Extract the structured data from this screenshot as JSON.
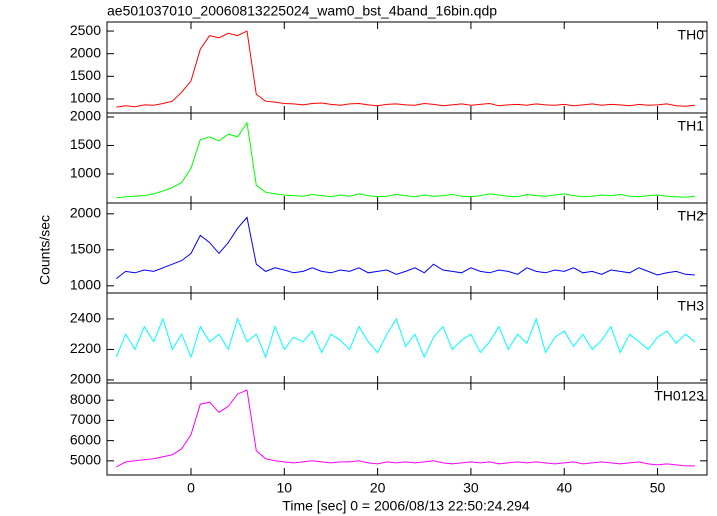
{
  "chart_data": [
    {
      "type": "line",
      "title": "ae501037010_20060813225024_wam0_bst_4band_16bin.qdp",
      "label": "TH0",
      "color": "#ff0000",
      "x": [
        -8,
        -7,
        -6,
        -5,
        -4,
        -3,
        -2,
        -1,
        0,
        1,
        2,
        3,
        4,
        5,
        6,
        7,
        8,
        9,
        10,
        11,
        12,
        13,
        14,
        15,
        16,
        17,
        18,
        19,
        20,
        21,
        22,
        23,
        24,
        25,
        26,
        27,
        28,
        29,
        30,
        31,
        32,
        33,
        34,
        35,
        36,
        37,
        38,
        39,
        40,
        41,
        42,
        43,
        44,
        45,
        46,
        47,
        48,
        49,
        50,
        51,
        52,
        53,
        54
      ],
      "values": [
        820,
        850,
        830,
        870,
        860,
        900,
        950,
        1150,
        1400,
        2100,
        2400,
        2350,
        2450,
        2400,
        2500,
        1100,
        950,
        930,
        900,
        890,
        870,
        900,
        910,
        880,
        860,
        890,
        900,
        870,
        850,
        880,
        890,
        870,
        860,
        900,
        880,
        850,
        870,
        890,
        860,
        880,
        900,
        850,
        870,
        880,
        860,
        890,
        870,
        860,
        880,
        850,
        870,
        890,
        860,
        880,
        870,
        850,
        880,
        860,
        870,
        890,
        850,
        840,
        860
      ],
      "xlim": [
        -9,
        55.3
      ],
      "xticks": [
        0,
        10,
        20,
        30,
        40,
        50
      ],
      "ylim": [
        690,
        2700
      ],
      "yticks": [
        1000,
        1500,
        2000,
        2500
      ]
    },
    {
      "type": "line",
      "label": "TH1",
      "color": "#00ff00",
      "x": [
        -8,
        -7,
        -6,
        -5,
        -4,
        -3,
        -2,
        -1,
        0,
        1,
        2,
        3,
        4,
        5,
        6,
        7,
        8,
        9,
        10,
        11,
        12,
        13,
        14,
        15,
        16,
        17,
        18,
        19,
        20,
        21,
        22,
        23,
        24,
        25,
        26,
        27,
        28,
        29,
        30,
        31,
        32,
        33,
        34,
        35,
        36,
        37,
        38,
        39,
        40,
        41,
        42,
        43,
        44,
        45,
        46,
        47,
        48,
        49,
        50,
        51,
        52,
        53,
        54
      ],
      "values": [
        580,
        600,
        610,
        620,
        650,
        700,
        760,
        850,
        1100,
        1600,
        1650,
        1580,
        1700,
        1650,
        1900,
        800,
        680,
        650,
        630,
        620,
        610,
        640,
        620,
        600,
        630,
        610,
        650,
        620,
        600,
        610,
        640,
        620,
        600,
        630,
        610,
        620,
        640,
        610,
        600,
        620,
        650,
        630,
        610,
        600,
        640,
        620,
        610,
        630,
        650,
        620,
        600,
        610,
        630,
        620,
        640,
        610,
        600,
        620,
        630,
        610,
        600,
        590,
        610
      ],
      "xlim": [
        -9,
        55.3
      ],
      "xticks": [
        0,
        10,
        20,
        30,
        40,
        50
      ],
      "ylim": [
        490,
        2070
      ],
      "yticks": [
        1000,
        1500,
        2000
      ]
    },
    {
      "type": "line",
      "label": "TH2",
      "color": "#0000ff",
      "ylabel": "Counts/sec",
      "x": [
        -8,
        -7,
        -6,
        -5,
        -4,
        -3,
        -2,
        -1,
        0,
        1,
        2,
        3,
        4,
        5,
        6,
        7,
        8,
        9,
        10,
        11,
        12,
        13,
        14,
        15,
        16,
        17,
        18,
        19,
        20,
        21,
        22,
        23,
        24,
        25,
        26,
        27,
        28,
        29,
        30,
        31,
        32,
        33,
        34,
        35,
        36,
        37,
        38,
        39,
        40,
        41,
        42,
        43,
        44,
        45,
        46,
        47,
        48,
        49,
        50,
        51,
        52,
        53,
        54
      ],
      "values": [
        1100,
        1200,
        1180,
        1220,
        1200,
        1250,
        1300,
        1350,
        1450,
        1700,
        1600,
        1450,
        1600,
        1800,
        1950,
        1300,
        1200,
        1250,
        1220,
        1180,
        1200,
        1250,
        1200,
        1180,
        1220,
        1200,
        1250,
        1180,
        1200,
        1220,
        1160,
        1200,
        1250,
        1180,
        1300,
        1220,
        1200,
        1180,
        1250,
        1200,
        1180,
        1220,
        1200,
        1160,
        1250,
        1200,
        1180,
        1220,
        1200,
        1250,
        1180,
        1200,
        1160,
        1220,
        1200,
        1180,
        1250,
        1200,
        1150,
        1180,
        1200,
        1160,
        1150
      ],
      "xlim": [
        -9,
        55.3
      ],
      "xticks": [
        0,
        10,
        20,
        30,
        40,
        50
      ],
      "ylim": [
        900,
        2150
      ],
      "yticks": [
        1000,
        1500,
        2000
      ]
    },
    {
      "type": "line",
      "label": "TH3",
      "color": "#00ffff",
      "x": [
        -8,
        -7,
        -6,
        -5,
        -4,
        -3,
        -2,
        -1,
        0,
        1,
        2,
        3,
        4,
        5,
        6,
        7,
        8,
        9,
        10,
        11,
        12,
        13,
        14,
        15,
        16,
        17,
        18,
        19,
        20,
        21,
        22,
        23,
        24,
        25,
        26,
        27,
        28,
        29,
        30,
        31,
        32,
        33,
        34,
        35,
        36,
        37,
        38,
        39,
        40,
        41,
        42,
        43,
        44,
        45,
        46,
        47,
        48,
        49,
        50,
        51,
        52,
        53,
        54
      ],
      "values": [
        2150,
        2300,
        2200,
        2350,
        2250,
        2400,
        2200,
        2300,
        2150,
        2350,
        2250,
        2300,
        2200,
        2400,
        2250,
        2300,
        2150,
        2350,
        2200,
        2280,
        2250,
        2320,
        2180,
        2300,
        2260,
        2200,
        2350,
        2250,
        2180,
        2300,
        2400,
        2220,
        2300,
        2150,
        2280,
        2350,
        2200,
        2260,
        2300,
        2180,
        2250,
        2350,
        2200,
        2300,
        2240,
        2400,
        2180,
        2280,
        2320,
        2220,
        2300,
        2200,
        2260,
        2350,
        2180,
        2300,
        2250,
        2200,
        2280,
        2320,
        2240,
        2300,
        2250
      ],
      "xlim": [
        -9,
        55.3
      ],
      "xticks": [
        0,
        10,
        20,
        30,
        40,
        50
      ],
      "ylim": [
        1980,
        2570
      ],
      "yticks": [
        2000,
        2200,
        2400
      ]
    },
    {
      "type": "line",
      "label": "TH0123",
      "color": "#ff00ff",
      "xlabel": "Time [sec] 0 = 2006/08/13 22:50:24.294",
      "x": [
        -8,
        -7,
        -6,
        -5,
        -4,
        -3,
        -2,
        -1,
        0,
        1,
        2,
        3,
        4,
        5,
        6,
        7,
        8,
        9,
        10,
        11,
        12,
        13,
        14,
        15,
        16,
        17,
        18,
        19,
        20,
        21,
        22,
        23,
        24,
        25,
        26,
        27,
        28,
        29,
        30,
        31,
        32,
        33,
        34,
        35,
        36,
        37,
        38,
        39,
        40,
        41,
        42,
        43,
        44,
        45,
        46,
        47,
        48,
        49,
        50,
        51,
        52,
        53,
        54
      ],
      "values": [
        4700,
        4950,
        5000,
        5050,
        5100,
        5200,
        5300,
        5600,
        6300,
        7800,
        7900,
        7400,
        7700,
        8300,
        8500,
        5500,
        5100,
        5000,
        4950,
        4900,
        4950,
        5000,
        4950,
        4900,
        4950,
        4950,
        5000,
        4900,
        4850,
        4950,
        4900,
        4950,
        4900,
        4950,
        5000,
        4900,
        4850,
        4900,
        4950,
        4900,
        4950,
        4850,
        4900,
        4950,
        4900,
        4950,
        4900,
        4850,
        4900,
        4950,
        4850,
        4900,
        4950,
        4900,
        4850,
        4900,
        4950,
        4850,
        4800,
        4850,
        4800,
        4750,
        4750
      ],
      "xlim": [
        -9,
        55.3
      ],
      "xticks": [
        0,
        10,
        20,
        30,
        40,
        50
      ],
      "ylim": [
        4300,
        8850
      ],
      "yticks": [
        5000,
        6000,
        7000,
        8000
      ]
    }
  ]
}
